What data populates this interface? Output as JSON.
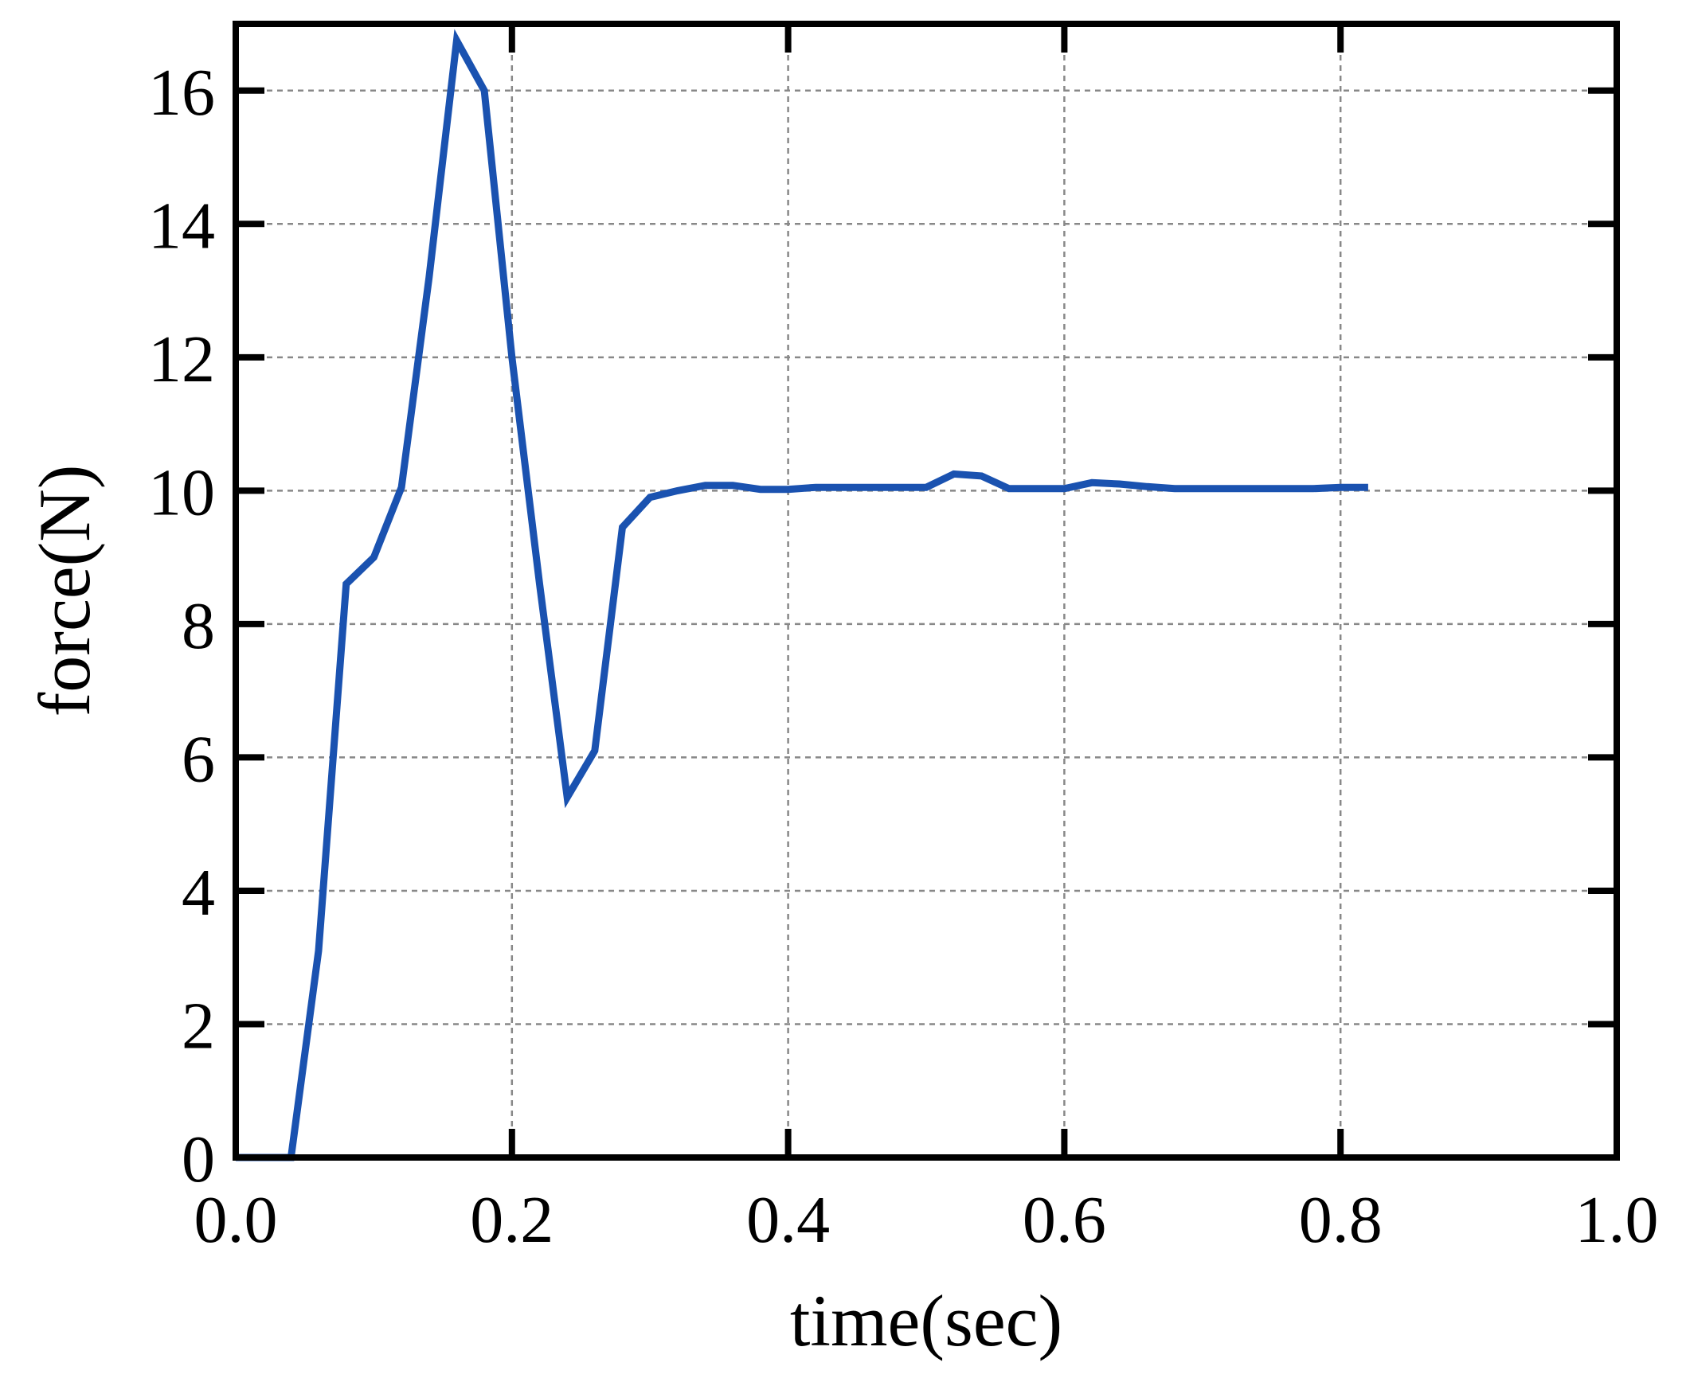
{
  "chart_data": {
    "type": "line",
    "xlabel": "time(sec)",
    "ylabel": "force(N)",
    "xlim": [
      0.0,
      1.0
    ],
    "ylim": [
      0,
      17
    ],
    "x_ticks": [
      0.0,
      0.2,
      0.4,
      0.6,
      0.8,
      1.0
    ],
    "x_tick_labels": [
      "0.0",
      "0.2",
      "0.4",
      "0.6",
      "0.8",
      "1.0"
    ],
    "y_ticks": [
      0,
      2,
      4,
      6,
      8,
      10,
      12,
      14,
      16
    ],
    "y_tick_labels": [
      "0",
      "2",
      "4",
      "6",
      "8",
      "10",
      "12",
      "14",
      "16"
    ],
    "grid": true,
    "series": [
      {
        "color": "#1a52b0",
        "x": [
          0.0,
          0.02,
          0.04,
          0.06,
          0.08,
          0.1,
          0.12,
          0.14,
          0.16,
          0.18,
          0.2,
          0.22,
          0.24,
          0.26,
          0.28,
          0.3,
          0.32,
          0.34,
          0.36,
          0.38,
          0.4,
          0.42,
          0.44,
          0.46,
          0.48,
          0.5,
          0.52,
          0.54,
          0.56,
          0.58,
          0.6,
          0.62,
          0.64,
          0.66,
          0.68,
          0.7,
          0.72,
          0.74,
          0.76,
          0.78,
          0.8,
          0.82
        ],
        "y": [
          0.0,
          0.0,
          0.0,
          3.1,
          8.6,
          9.0,
          10.05,
          13.2,
          16.75,
          16.0,
          12.0,
          8.6,
          5.4,
          6.1,
          9.45,
          9.9,
          10.0,
          10.08,
          10.08,
          10.02,
          10.02,
          10.05,
          10.05,
          10.05,
          10.05,
          10.05,
          10.25,
          10.22,
          10.03,
          10.03,
          10.03,
          10.12,
          10.1,
          10.06,
          10.03,
          10.03,
          10.03,
          10.03,
          10.03,
          10.03,
          10.05,
          10.05
        ]
      }
    ]
  }
}
